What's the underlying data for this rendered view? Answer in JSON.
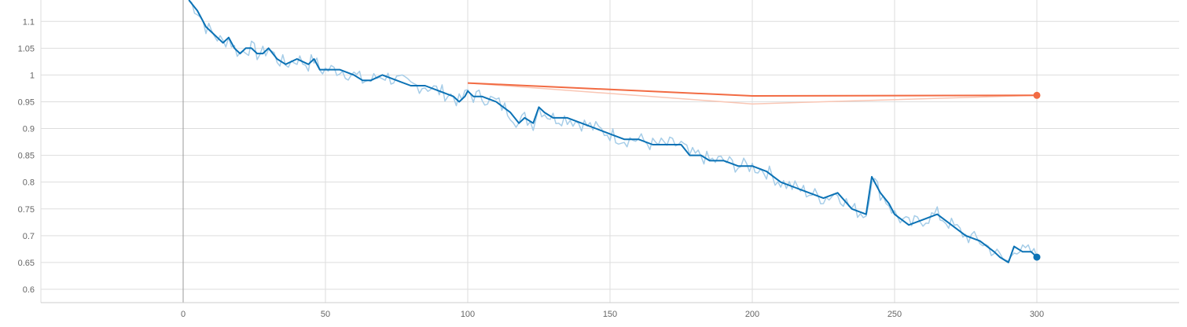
{
  "chart_data": {
    "type": "line",
    "title": "",
    "xlabel": "",
    "ylabel": "",
    "xlim": [
      -50,
      350
    ],
    "ylim": [
      0.575,
      1.14
    ],
    "grid": true,
    "legend": "none",
    "x_ticks": [
      0,
      50,
      100,
      150,
      200,
      250,
      300
    ],
    "y_ticks": [
      0.6,
      0.65,
      0.7,
      0.75,
      0.8,
      0.85,
      0.9,
      0.95,
      1,
      1.05,
      1.1
    ],
    "x_tick_labels": [
      "0",
      "50",
      "100",
      "150",
      "200",
      "250",
      "300"
    ],
    "y_tick_labels": [
      "0.6",
      "0.65",
      "0.7",
      "0.75",
      "0.8",
      "0.85",
      "0.9",
      "0.95",
      "1",
      "1.05",
      "1.1"
    ],
    "colors": {
      "train": "#0b72b5",
      "train_raw": "#a6cde8",
      "eval": "#f26b43",
      "eval_raw": "#f9c6b4",
      "grid": "#dddddd",
      "axis": "#999999"
    },
    "series": [
      {
        "color_key": "train",
        "x": [
          2,
          5,
          8,
          10,
          12,
          14,
          16,
          18,
          20,
          22,
          24,
          26,
          28,
          30,
          33,
          36,
          40,
          44,
          46,
          48,
          50,
          55,
          60,
          63,
          66,
          70,
          75,
          80,
          85,
          90,
          95,
          97,
          99,
          100,
          102,
          105,
          110,
          115,
          118,
          120,
          123,
          125,
          127,
          130,
          135,
          140,
          145,
          150,
          155,
          160,
          165,
          170,
          175,
          178,
          182,
          185,
          190,
          195,
          200,
          205,
          210,
          215,
          220,
          225,
          230,
          235,
          240,
          242,
          245,
          248,
          250,
          255,
          260,
          265,
          270,
          275,
          280,
          285,
          287,
          290,
          292,
          295,
          298,
          300
        ],
        "y": [
          1.14,
          1.12,
          1.09,
          1.08,
          1.07,
          1.06,
          1.07,
          1.05,
          1.04,
          1.05,
          1.05,
          1.04,
          1.04,
          1.05,
          1.03,
          1.02,
          1.03,
          1.02,
          1.03,
          1.01,
          1.01,
          1.01,
          1.0,
          0.99,
          0.99,
          1.0,
          0.99,
          0.98,
          0.98,
          0.97,
          0.96,
          0.95,
          0.96,
          0.97,
          0.96,
          0.96,
          0.95,
          0.93,
          0.91,
          0.92,
          0.91,
          0.94,
          0.93,
          0.92,
          0.92,
          0.91,
          0.9,
          0.89,
          0.88,
          0.88,
          0.87,
          0.87,
          0.87,
          0.85,
          0.85,
          0.84,
          0.84,
          0.83,
          0.83,
          0.82,
          0.8,
          0.79,
          0.78,
          0.77,
          0.78,
          0.75,
          0.74,
          0.81,
          0.78,
          0.76,
          0.74,
          0.72,
          0.73,
          0.74,
          0.72,
          0.7,
          0.69,
          0.67,
          0.66,
          0.65,
          0.68,
          0.67,
          0.67,
          0.66
        ]
      },
      {
        "color_key": "eval",
        "x": [
          100,
          200,
          300
        ],
        "y": [
          0.985,
          0.961,
          0.962
        ]
      }
    ]
  }
}
